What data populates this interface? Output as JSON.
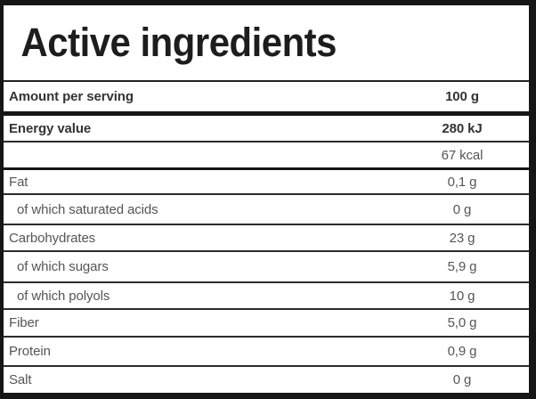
{
  "header": {
    "title": "Active ingredients"
  },
  "colors": {
    "background": "#ffffff",
    "border": "#161616",
    "title_text": "#1d1d1d",
    "bold_text": "#333333",
    "regular_text": "#555555"
  },
  "table": {
    "rows": [
      {
        "label": "Amount per serving",
        "value": "100 g",
        "bold": true,
        "indent": false,
        "divider": "thick"
      },
      {
        "label": "Energy value",
        "value": "280 kJ",
        "bold": true,
        "indent": false,
        "divider": "thin"
      },
      {
        "label": "",
        "value": "67 kcal",
        "bold": false,
        "indent": false,
        "divider": "medium"
      },
      {
        "label": "Fat",
        "value": "0,1 g",
        "bold": false,
        "indent": false,
        "divider": "thin"
      },
      {
        "label": "of which saturated acids",
        "value": "0 g",
        "bold": false,
        "indent": true,
        "divider": "thin"
      },
      {
        "label": "Carbohydrates",
        "value": "23 g",
        "bold": false,
        "indent": false,
        "divider": "thin"
      },
      {
        "label": "of which sugars",
        "value": "5,9 g",
        "bold": false,
        "indent": true,
        "divider": "thin"
      },
      {
        "label": "of which polyols",
        "value": "10 g",
        "bold": false,
        "indent": true,
        "divider": "thin"
      },
      {
        "label": "Fiber",
        "value": "5,0 g",
        "bold": false,
        "indent": false,
        "divider": "thin"
      },
      {
        "label": "Protein",
        "value": "0,9 g",
        "bold": false,
        "indent": false,
        "divider": "thin"
      },
      {
        "label": "Salt",
        "value": "0 g",
        "bold": false,
        "indent": false,
        "divider": "none"
      }
    ]
  }
}
